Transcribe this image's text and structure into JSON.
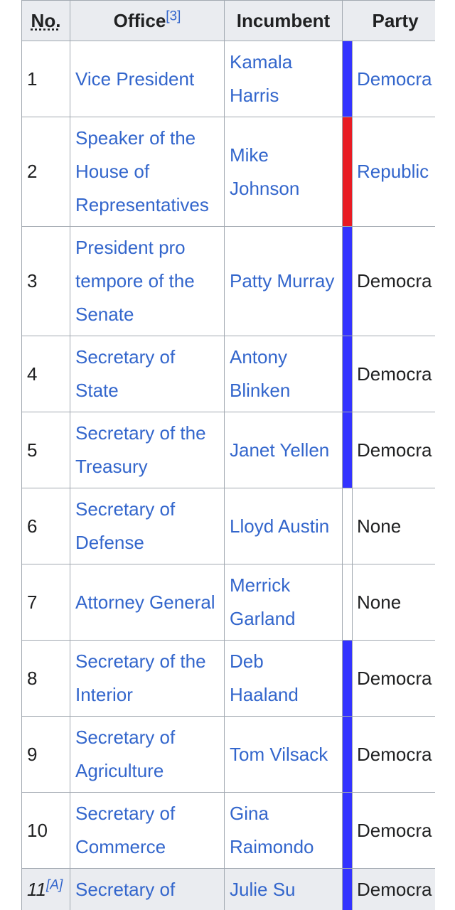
{
  "table": {
    "header": {
      "no": "No.",
      "office": "Office",
      "office_note": "[3]",
      "incumbent": "Incumbent",
      "party": "Party"
    },
    "rows": [
      {
        "no": "1",
        "office": "Vice President",
        "incumbent": "Kamala Harris",
        "party": "Democra",
        "party_link": true,
        "color": "#3333ff"
      },
      {
        "no": "2",
        "office": "Speaker of the House of Representatives",
        "incumbent": "Mike Johnson",
        "party": "Republic",
        "party_link": true,
        "color": "#e81b23"
      },
      {
        "no": "3",
        "office": "President pro tempore of the Senate",
        "incumbent": "Patty Murray",
        "party": "Democra",
        "party_link": false,
        "color": "#3333ff"
      },
      {
        "no": "4",
        "office": "Secretary of State",
        "incumbent": "Antony Blinken",
        "party": "Democra",
        "party_link": false,
        "color": "#3333ff"
      },
      {
        "no": "5",
        "office": "Secretary of the Treasury",
        "incumbent": "Janet Yellen",
        "party": "Democra",
        "party_link": false,
        "color": "#3333ff"
      },
      {
        "no": "6",
        "office": "Secretary of Defense",
        "incumbent": "Lloyd Austin",
        "party": "None",
        "party_link": false,
        "color": null
      },
      {
        "no": "7",
        "office": "Attorney General",
        "incumbent": "Merrick Garland",
        "party": "None",
        "party_link": false,
        "color": null
      },
      {
        "no": "8",
        "office": "Secretary of the Interior",
        "incumbent": "Deb Haaland",
        "party": "Democra",
        "party_link": false,
        "color": "#3333ff"
      },
      {
        "no": "9",
        "office": "Secretary of Agriculture",
        "incumbent": "Tom Vilsack",
        "party": "Democra",
        "party_link": false,
        "color": "#3333ff"
      },
      {
        "no": "10",
        "office": "Secretary of Commerce",
        "incumbent": "Gina Raimondo",
        "party": "Democra",
        "party_link": false,
        "color": "#3333ff"
      },
      {
        "no": "11",
        "no_note": "[A]",
        "office": "Secretary of",
        "incumbent": "Julie Su",
        "party": "Democra",
        "party_link": false,
        "color": "#3333ff",
        "shaded": true
      }
    ]
  }
}
